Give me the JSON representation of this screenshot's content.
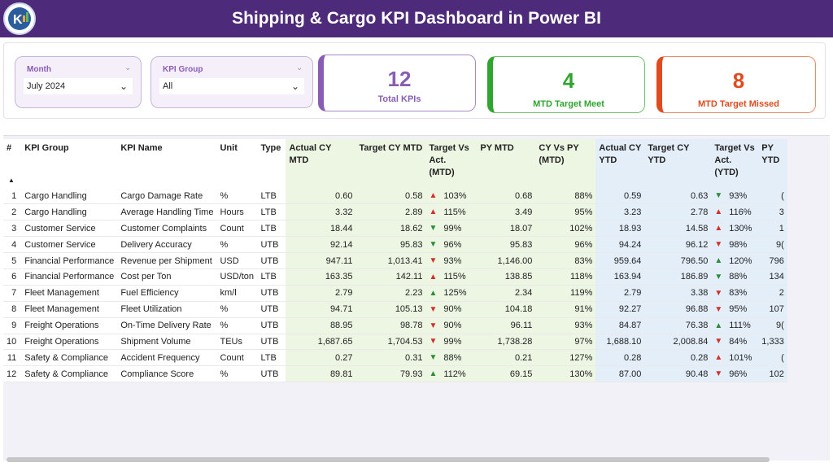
{
  "header": {
    "title": "Shipping & Cargo KPI Dashboard in Power BI"
  },
  "filters": {
    "month": {
      "label": "Month",
      "value": "July 2024"
    },
    "kpi_group": {
      "label": "KPI Group",
      "value": "All"
    }
  },
  "cards": {
    "total": {
      "value": "12",
      "label": "Total KPIs",
      "color": "#8a5db5"
    },
    "meet": {
      "value": "4",
      "label": "MTD Target Meet",
      "color": "#2fa52f"
    },
    "missed": {
      "value": "8",
      "label": "MTD Target Missed",
      "color": "#e04a1f"
    }
  },
  "table": {
    "headers": {
      "idx": "#",
      "group": "KPI Group",
      "name": "KPI Name",
      "unit": "Unit",
      "type": "Type",
      "actual_mtd": "Actual CY MTD",
      "target_mtd": "Target CY MTD",
      "tva_mtd": "Target Vs Act. (MTD)",
      "py_mtd": "PY MTD",
      "cyvpy_mtd": "CY Vs PY (MTD)",
      "actual_ytd": "Actual CY YTD",
      "target_ytd": "Target CY YTD",
      "tva_ytd": "Target Vs Act. (YTD)",
      "py_ytd": "PY YTD"
    },
    "rows": [
      {
        "idx": "1",
        "group": "Cargo Handling",
        "name": "Cargo Damage Rate",
        "unit": "%",
        "type": "LTB",
        "actual_mtd": "0.60",
        "target_mtd": "0.58",
        "arrow_mtd": "up",
        "tva_mtd": "103%",
        "py_mtd": "0.68",
        "cyvpy_mtd": "88%",
        "actual_ytd": "0.59",
        "target_ytd": "0.63",
        "arrow_ytd": "down",
        "tva_ytd": "93%",
        "py_ytd": "("
      },
      {
        "idx": "2",
        "group": "Cargo Handling",
        "name": "Average Handling Time",
        "unit": "Hours",
        "type": "LTB",
        "actual_mtd": "3.32",
        "target_mtd": "2.89",
        "arrow_mtd": "up",
        "tva_mtd": "115%",
        "py_mtd": "3.49",
        "cyvpy_mtd": "95%",
        "actual_ytd": "3.23",
        "target_ytd": "2.78",
        "arrow_ytd": "up",
        "tva_ytd": "116%",
        "py_ytd": "3"
      },
      {
        "idx": "3",
        "group": "Customer Service",
        "name": "Customer Complaints",
        "unit": "Count",
        "type": "LTB",
        "actual_mtd": "18.44",
        "target_mtd": "18.62",
        "arrow_mtd": "down",
        "tva_mtd": "99%",
        "py_mtd": "18.07",
        "cyvpy_mtd": "102%",
        "actual_ytd": "18.93",
        "target_ytd": "14.58",
        "arrow_ytd": "up",
        "tva_ytd": "130%",
        "py_ytd": "1"
      },
      {
        "idx": "4",
        "group": "Customer Service",
        "name": "Delivery Accuracy",
        "unit": "%",
        "type": "UTB",
        "actual_mtd": "92.14",
        "target_mtd": "95.83",
        "arrow_mtd": "down",
        "tva_mtd": "96%",
        "py_mtd": "95.83",
        "cyvpy_mtd": "96%",
        "actual_ytd": "94.24",
        "target_ytd": "96.12",
        "arrow_ytd": "down",
        "tva_ytd": "98%",
        "py_ytd": "9("
      },
      {
        "idx": "5",
        "group": "Financial Performance",
        "name": "Revenue per Shipment",
        "unit": "USD",
        "type": "UTB",
        "actual_mtd": "947.11",
        "target_mtd": "1,013.41",
        "arrow_mtd": "down",
        "tva_mtd": "93%",
        "py_mtd": "1,146.00",
        "cyvpy_mtd": "83%",
        "actual_ytd": "959.64",
        "target_ytd": "796.50",
        "arrow_ytd": "up",
        "tva_ytd": "120%",
        "py_ytd": "796"
      },
      {
        "idx": "6",
        "group": "Financial Performance",
        "name": "Cost per Ton",
        "unit": "USD/ton",
        "type": "LTB",
        "actual_mtd": "163.35",
        "target_mtd": "142.11",
        "arrow_mtd": "up",
        "tva_mtd": "115%",
        "py_mtd": "138.85",
        "cyvpy_mtd": "118%",
        "actual_ytd": "163.94",
        "target_ytd": "186.89",
        "arrow_ytd": "down",
        "tva_ytd": "88%",
        "py_ytd": "134"
      },
      {
        "idx": "7",
        "group": "Fleet Management",
        "name": "Fuel Efficiency",
        "unit": "km/l",
        "type": "UTB",
        "actual_mtd": "2.79",
        "target_mtd": "2.23",
        "arrow_mtd": "up",
        "tva_mtd": "125%",
        "py_mtd": "2.34",
        "cyvpy_mtd": "119%",
        "actual_ytd": "2.79",
        "target_ytd": "3.38",
        "arrow_ytd": "down",
        "tva_ytd": "83%",
        "py_ytd": "2"
      },
      {
        "idx": "8",
        "group": "Fleet Management",
        "name": "Fleet Utilization",
        "unit": "%",
        "type": "UTB",
        "actual_mtd": "94.71",
        "target_mtd": "105.13",
        "arrow_mtd": "down",
        "tva_mtd": "90%",
        "py_mtd": "104.18",
        "cyvpy_mtd": "91%",
        "actual_ytd": "92.27",
        "target_ytd": "96.88",
        "arrow_ytd": "down",
        "tva_ytd": "95%",
        "py_ytd": "107"
      },
      {
        "idx": "9",
        "group": "Freight Operations",
        "name": "On-Time Delivery Rate",
        "unit": "%",
        "type": "UTB",
        "actual_mtd": "88.95",
        "target_mtd": "98.78",
        "arrow_mtd": "down",
        "tva_mtd": "90%",
        "py_mtd": "96.11",
        "cyvpy_mtd": "93%",
        "actual_ytd": "84.87",
        "target_ytd": "76.38",
        "arrow_ytd": "up",
        "tva_ytd": "111%",
        "py_ytd": "9("
      },
      {
        "idx": "10",
        "group": "Freight Operations",
        "name": "Shipment Volume",
        "unit": "TEUs",
        "type": "UTB",
        "actual_mtd": "1,687.65",
        "target_mtd": "1,704.53",
        "arrow_mtd": "down",
        "tva_mtd": "99%",
        "py_mtd": "1,738.28",
        "cyvpy_mtd": "97%",
        "actual_ytd": "1,688.10",
        "target_ytd": "2,008.84",
        "arrow_ytd": "down",
        "tva_ytd": "84%",
        "py_ytd": "1,333"
      },
      {
        "idx": "11",
        "group": "Safety & Compliance",
        "name": "Accident Frequency",
        "unit": "Count",
        "type": "LTB",
        "actual_mtd": "0.27",
        "target_mtd": "0.31",
        "arrow_mtd": "down",
        "tva_mtd": "88%",
        "py_mtd": "0.21",
        "cyvpy_mtd": "127%",
        "actual_ytd": "0.28",
        "target_ytd": "0.28",
        "arrow_ytd": "up",
        "tva_ytd": "101%",
        "py_ytd": "("
      },
      {
        "idx": "12",
        "group": "Safety & Compliance",
        "name": "Compliance Score",
        "unit": "%",
        "type": "UTB",
        "actual_mtd": "89.81",
        "target_mtd": "79.93",
        "arrow_mtd": "up",
        "tva_mtd": "112%",
        "py_mtd": "69.15",
        "cyvpy_mtd": "130%",
        "actual_ytd": "87.00",
        "target_ytd": "90.48",
        "arrow_ytd": "down",
        "tva_ytd": "96%",
        "py_ytd": "102"
      }
    ]
  }
}
